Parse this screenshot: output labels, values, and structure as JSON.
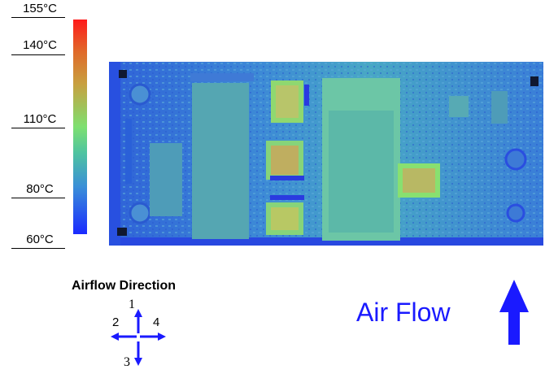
{
  "scale": {
    "labels": [
      "155°C",
      "140°C",
      "110°C",
      "80°C",
      "60°C"
    ],
    "colors": [
      "#ff1a1a",
      "#c8a040",
      "#7ee070",
      "#3a8fd8",
      "#1a2aff"
    ]
  },
  "legend": {
    "title": "Airflow Direction",
    "dir1": "1",
    "dir2": "2",
    "dir3": "3",
    "dir4": "4"
  },
  "airflow": {
    "label": "Air Flow",
    "color": "#1a1aff"
  }
}
